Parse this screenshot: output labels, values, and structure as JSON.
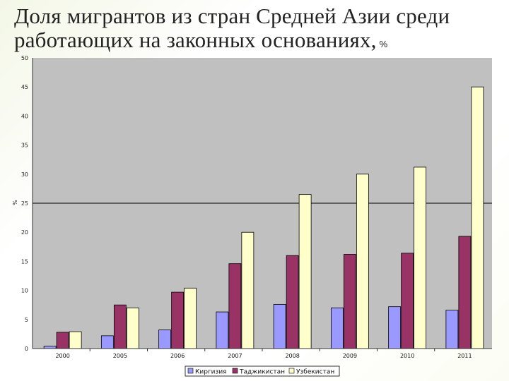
{
  "slide": {
    "title_text": "Доля мигрантов из стран Средней Азии среди работающих на законных основаниях,",
    "title_unit": "%"
  },
  "chart_data": {
    "type": "bar",
    "title": "",
    "xlabel": "",
    "ylabel": "%",
    "ylim": [
      0,
      50
    ],
    "yticks": [
      0,
      5,
      10,
      15,
      20,
      25,
      30,
      35,
      40,
      45,
      50
    ],
    "grid": false,
    "reference_line": 25,
    "legend_position": "bottom",
    "categories": [
      "2000",
      "2005",
      "2006",
      "2007",
      "2008",
      "2009",
      "2010",
      "2011"
    ],
    "series": [
      {
        "name": "Киргизия",
        "color": "#9999ff",
        "values": [
          0.4,
          2.2,
          3.2,
          6.3,
          7.6,
          7.0,
          7.2,
          6.6
        ]
      },
      {
        "name": "Таджикистан",
        "color": "#993366",
        "values": [
          2.8,
          7.5,
          9.7,
          14.6,
          16.0,
          16.2,
          16.4,
          19.3
        ]
      },
      {
        "name": "Узбекистан",
        "color": "#ffffcc",
        "values": [
          2.9,
          7.0,
          10.4,
          20.0,
          26.5,
          30.0,
          31.2,
          45.0
        ]
      }
    ]
  }
}
